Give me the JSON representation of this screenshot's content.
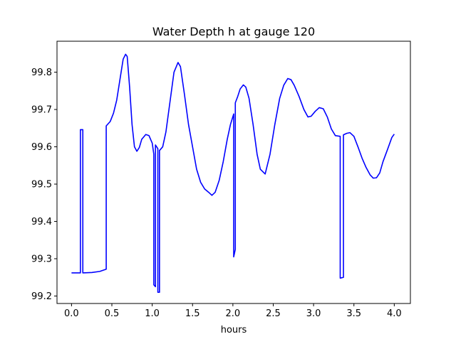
{
  "chart_data": {
    "type": "line",
    "title": "Water Depth h at gauge 120",
    "xlabel": "hours",
    "ylabel": "",
    "xlim": [
      -0.18,
      4.2
    ],
    "ylim": [
      99.18,
      99.883
    ],
    "xticks": [
      0.0,
      0.5,
      1.0,
      1.5,
      2.0,
      2.5,
      3.0,
      3.5,
      4.0
    ],
    "xtick_labels": [
      "0.0",
      "0.5",
      "1.0",
      "1.5",
      "2.0",
      "2.5",
      "3.0",
      "3.5",
      "4.0"
    ],
    "yticks": [
      99.2,
      99.3,
      99.4,
      99.5,
      99.6,
      99.7,
      99.8
    ],
    "ytick_labels": [
      "99.2",
      "99.3",
      "99.4",
      "99.5",
      "99.6",
      "99.7",
      "99.8"
    ],
    "grid": false,
    "legend": "none",
    "color": "#0000ff",
    "series": [
      {
        "points": [
          [
            0.0,
            99.262
          ],
          [
            0.11,
            99.262
          ],
          [
            0.11,
            99.646
          ],
          [
            0.14,
            99.646
          ],
          [
            0.14,
            99.262
          ],
          [
            0.25,
            99.263
          ],
          [
            0.35,
            99.266
          ],
          [
            0.43,
            99.272
          ],
          [
            0.43,
            99.656
          ],
          [
            0.48,
            99.668
          ],
          [
            0.52,
            99.69
          ],
          [
            0.56,
            99.725
          ],
          [
            0.6,
            99.78
          ],
          [
            0.64,
            99.835
          ],
          [
            0.67,
            99.848
          ],
          [
            0.69,
            99.842
          ],
          [
            0.72,
            99.76
          ],
          [
            0.75,
            99.66
          ],
          [
            0.78,
            99.6
          ],
          [
            0.81,
            99.588
          ],
          [
            0.84,
            99.598
          ],
          [
            0.87,
            99.62
          ],
          [
            0.92,
            99.633
          ],
          [
            0.96,
            99.63
          ],
          [
            1.0,
            99.61
          ],
          [
            1.02,
            99.58
          ],
          [
            1.02,
            99.23
          ],
          [
            1.04,
            99.225
          ],
          [
            1.04,
            99.605
          ],
          [
            1.07,
            99.595
          ],
          [
            1.07,
            99.21
          ],
          [
            1.09,
            99.21
          ],
          [
            1.09,
            99.59
          ],
          [
            1.13,
            99.6
          ],
          [
            1.17,
            99.64
          ],
          [
            1.22,
            99.72
          ],
          [
            1.27,
            99.8
          ],
          [
            1.32,
            99.826
          ],
          [
            1.35,
            99.815
          ],
          [
            1.4,
            99.74
          ],
          [
            1.45,
            99.66
          ],
          [
            1.5,
            99.6
          ],
          [
            1.55,
            99.54
          ],
          [
            1.6,
            99.505
          ],
          [
            1.65,
            99.487
          ],
          [
            1.7,
            99.478
          ],
          [
            1.74,
            99.47
          ],
          [
            1.78,
            99.478
          ],
          [
            1.83,
            99.51
          ],
          [
            1.88,
            99.56
          ],
          [
            1.93,
            99.62
          ],
          [
            1.97,
            99.66
          ],
          [
            2.01,
            99.688
          ],
          [
            2.01,
            99.305
          ],
          [
            2.03,
            99.325
          ],
          [
            2.03,
            99.718
          ],
          [
            2.06,
            99.735
          ],
          [
            2.09,
            99.755
          ],
          [
            2.13,
            99.766
          ],
          [
            2.16,
            99.76
          ],
          [
            2.2,
            99.73
          ],
          [
            2.25,
            99.66
          ],
          [
            2.3,
            99.58
          ],
          [
            2.34,
            99.54
          ],
          [
            2.4,
            99.527
          ],
          [
            2.46,
            99.58
          ],
          [
            2.52,
            99.66
          ],
          [
            2.58,
            99.73
          ],
          [
            2.63,
            99.765
          ],
          [
            2.68,
            99.783
          ],
          [
            2.72,
            99.78
          ],
          [
            2.76,
            99.765
          ],
          [
            2.82,
            99.735
          ],
          [
            2.88,
            99.7
          ],
          [
            2.93,
            99.68
          ],
          [
            2.97,
            99.682
          ],
          [
            3.02,
            99.695
          ],
          [
            3.07,
            99.705
          ],
          [
            3.12,
            99.702
          ],
          [
            3.17,
            99.68
          ],
          [
            3.22,
            99.648
          ],
          [
            3.27,
            99.63
          ],
          [
            3.33,
            99.628
          ],
          [
            3.33,
            99.248
          ],
          [
            3.37,
            99.25
          ],
          [
            3.37,
            99.632
          ],
          [
            3.41,
            99.636
          ],
          [
            3.45,
            99.638
          ],
          [
            3.5,
            99.628
          ],
          [
            3.55,
            99.6
          ],
          [
            3.6,
            99.57
          ],
          [
            3.65,
            99.545
          ],
          [
            3.7,
            99.525
          ],
          [
            3.74,
            99.516
          ],
          [
            3.78,
            99.517
          ],
          [
            3.82,
            99.53
          ],
          [
            3.86,
            99.56
          ],
          [
            3.92,
            99.595
          ],
          [
            3.97,
            99.625
          ],
          [
            4.0,
            99.634
          ]
        ]
      }
    ]
  }
}
